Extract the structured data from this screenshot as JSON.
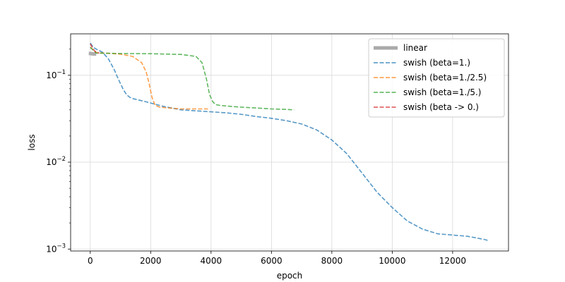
{
  "chart_data": {
    "type": "line",
    "xlabel": "epoch",
    "ylabel": "loss",
    "yscale": "log",
    "xlim": [
      -650,
      13850
    ],
    "ylim": [
      0.00095,
      0.3
    ],
    "grid": true,
    "legend_position": "top-right",
    "x_ticks": [
      0,
      2000,
      4000,
      6000,
      8000,
      10000,
      12000
    ],
    "x_tick_labels": [
      "0",
      "2000",
      "4000",
      "6000",
      "8000",
      "10000",
      "12000"
    ],
    "y_ticks": [
      0.001,
      0.01,
      0.1
    ],
    "y_tick_labels": [
      {
        "base": "10",
        "exp": "−3"
      },
      {
        "base": "10",
        "exp": "−2"
      },
      {
        "base": "10",
        "exp": "−1"
      }
    ],
    "series": [
      {
        "name": "linear",
        "color": "#aaaaaa",
        "style": "solid",
        "x": [
          -50,
          0,
          100,
          200
        ],
        "y": [
          0.178,
          0.178,
          0.176,
          0.175
        ]
      },
      {
        "name": "swish (beta=1.)",
        "color": "#1f77b4",
        "style": "dashed",
        "x": [
          0,
          100,
          200,
          400,
          600,
          800,
          900,
          1000,
          1100,
          1200,
          1300,
          1400,
          1600,
          1800,
          2000,
          2200,
          2400,
          2700,
          3000,
          3500,
          4000,
          4500,
          5000,
          5500,
          6000,
          6500,
          7000,
          7500,
          8000,
          8500,
          9000,
          9500,
          10000,
          10500,
          11000,
          11500,
          12000,
          12500,
          13000,
          13200
        ],
        "y": [
          0.235,
          0.21,
          0.2,
          0.185,
          0.155,
          0.115,
          0.095,
          0.08,
          0.068,
          0.06,
          0.056,
          0.054,
          0.052,
          0.05,
          0.048,
          0.046,
          0.044,
          0.042,
          0.04,
          0.039,
          0.038,
          0.037,
          0.0355,
          0.0335,
          0.032,
          0.03,
          0.0275,
          0.0235,
          0.018,
          0.0125,
          0.0075,
          0.0045,
          0.003,
          0.0021,
          0.0017,
          0.0015,
          0.00145,
          0.0014,
          0.0013,
          0.00125
        ]
      },
      {
        "name": "swish (beta=1./2.5)",
        "color": "#ff7f0e",
        "style": "dashed",
        "x": [
          0,
          200,
          500,
          1000,
          1400,
          1700,
          1850,
          1950,
          2050,
          2150,
          2300,
          2600,
          3000,
          3500,
          3900
        ],
        "y": [
          0.21,
          0.182,
          0.18,
          0.175,
          0.165,
          0.14,
          0.11,
          0.08,
          0.055,
          0.045,
          0.043,
          0.042,
          0.041,
          0.041,
          0.041
        ]
      },
      {
        "name": "swish (beta=1./5.)",
        "color": "#2ca02c",
        "style": "dashed",
        "x": [
          0,
          200,
          500,
          1000,
          2000,
          3000,
          3500,
          3700,
          3850,
          3950,
          4050,
          4150,
          4300,
          4600,
          5000,
          5500,
          6000,
          6500,
          6750
        ],
        "y": [
          0.21,
          0.18,
          0.179,
          0.178,
          0.177,
          0.174,
          0.165,
          0.14,
          0.09,
          0.06,
          0.05,
          0.046,
          0.045,
          0.044,
          0.043,
          0.042,
          0.041,
          0.0405,
          0.04
        ]
      },
      {
        "name": "swish (beta -> 0.)",
        "color": "#d62728",
        "style": "dashed",
        "x": [
          0,
          50,
          100,
          150,
          200,
          250,
          300
        ],
        "y": [
          0.23,
          0.215,
          0.2,
          0.19,
          0.185,
          0.182,
          0.18
        ]
      }
    ]
  }
}
